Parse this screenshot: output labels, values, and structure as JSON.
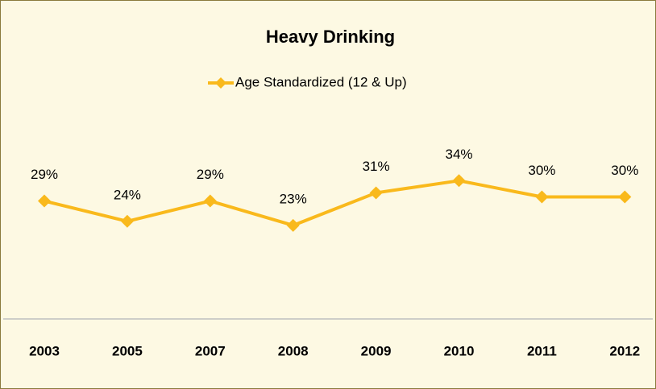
{
  "chart_data": {
    "type": "line",
    "title": "Heavy Drinking",
    "categories": [
      "2003",
      "2005",
      "2007",
      "2008",
      "2009",
      "2010",
      "2011",
      "2012"
    ],
    "series": [
      {
        "name": "Age Standardized (12 & Up)",
        "color": "#f9b91c",
        "values": [
          29,
          24,
          29,
          23,
          31,
          34,
          30,
          30
        ],
        "value_labels": [
          "29%",
          "24%",
          "29%",
          "23%",
          "31%",
          "34%",
          "30%",
          "30%"
        ]
      }
    ],
    "ylim": [
      0,
      40
    ],
    "legend": "top"
  }
}
